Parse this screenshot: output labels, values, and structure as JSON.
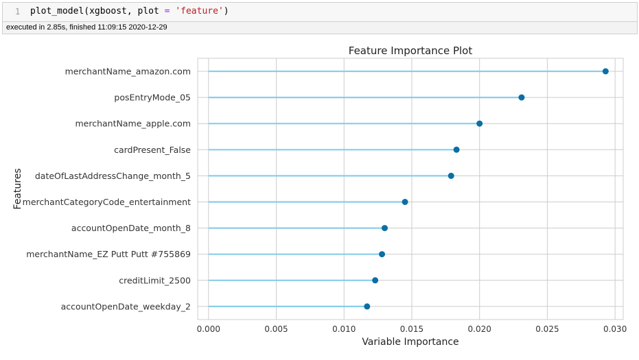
{
  "cell": {
    "line_number": "1",
    "code": {
      "prefix": "plot_model(xgboost, plot ",
      "op": "=",
      "mid": " ",
      "string": "'feature'",
      "suffix": ")"
    },
    "exec_status": "executed in 2.85s, finished 11:09:15 2020-12-29"
  },
  "colors": {
    "stem": "#87ceeb",
    "marker": "#0b6fa4",
    "grid": "#cccccc",
    "plot_border": "#cccccc"
  },
  "chart_data": {
    "type": "lollipop",
    "orientation": "horizontal",
    "title": "Feature Importance Plot",
    "xlabel": "Variable Importance",
    "ylabel": "Features",
    "xlim": [
      -0.0008,
      0.0306
    ],
    "xticks": [
      "0.000",
      "0.005",
      "0.010",
      "0.015",
      "0.020",
      "0.025",
      "0.030"
    ],
    "grid": true,
    "categories": [
      "merchantName_amazon.com",
      "posEntryMode_05",
      "merchantName_apple.com",
      "cardPresent_False",
      "dateOfLastAddressChange_month_5",
      "merchantCategoryCode_entertainment",
      "accountOpenDate_month_8",
      "merchantName_EZ Putt Putt #755869",
      "creditLimit_2500",
      "accountOpenDate_weekday_2"
    ],
    "values": [
      0.0293,
      0.0231,
      0.02,
      0.0183,
      0.0179,
      0.0145,
      0.013,
      0.0128,
      0.0123,
      0.0117
    ]
  }
}
